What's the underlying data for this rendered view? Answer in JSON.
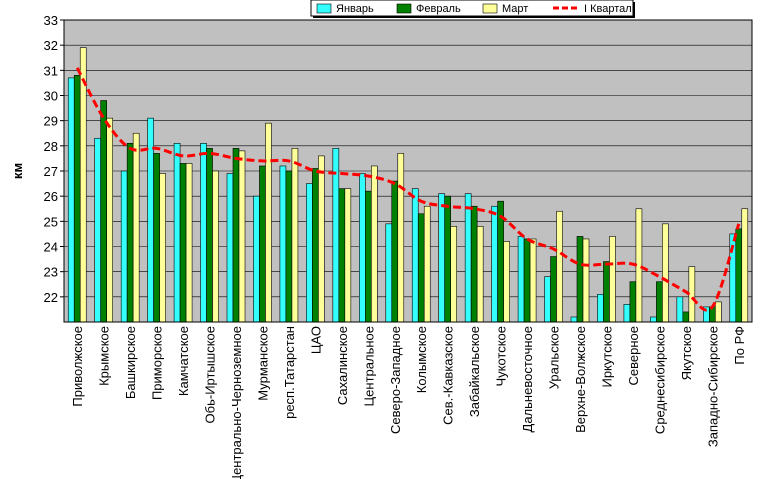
{
  "chart_data": {
    "type": "bar",
    "ylabel": "км",
    "ylim": [
      21,
      33
    ],
    "yticks": [
      22,
      23,
      24,
      25,
      26,
      27,
      28,
      29,
      30,
      31,
      32,
      33
    ],
    "grid": true,
    "legend_position": "top-right",
    "categories": [
      "Приволжское",
      "Крымское",
      "Башкирское",
      "Приморское",
      "Камчатское",
      "Обь-Иртышское",
      "Центрально-Черноземное",
      "Мурманское",
      "респ.Татарстан",
      "ЦАО",
      "Сахалинское",
      "Центральное",
      "Северо-Западное",
      "Колымское",
      "Сев.-Кавказское",
      "Забайкальское",
      "Чукотское",
      "Дальневосточное",
      "Уральское",
      "Верхне-Волжское",
      "Иркутское",
      "Северное",
      "Среднесибирское",
      "Якутское",
      "Западно-Сибирское",
      "По РФ"
    ],
    "series": [
      {
        "name": "Январь",
        "type": "bar",
        "color": "#33ffff",
        "values": [
          30.7,
          28.3,
          27.0,
          29.1,
          28.1,
          28.1,
          26.9,
          26.0,
          27.2,
          26.5,
          27.9,
          26.9,
          24.9,
          26.3,
          26.1,
          26.1,
          25.6,
          24.4,
          22.8,
          21.2,
          22.1,
          21.7,
          21.2,
          22.0,
          21.6,
          24.5
        ]
      },
      {
        "name": "Февраль",
        "type": "bar",
        "color": "#008000",
        "values": [
          30.8,
          29.8,
          28.1,
          27.7,
          27.3,
          27.9,
          27.9,
          27.2,
          27.0,
          27.1,
          26.3,
          26.2,
          26.6,
          25.3,
          26.0,
          25.6,
          25.8,
          24.3,
          23.6,
          24.4,
          23.4,
          22.6,
          22.6,
          21.4,
          21.6,
          24.7
        ]
      },
      {
        "name": "Март",
        "type": "bar",
        "color": "#ffff99",
        "values": [
          31.9,
          29.1,
          28.5,
          26.9,
          27.3,
          27.0,
          27.8,
          28.9,
          27.9,
          27.6,
          26.3,
          27.2,
          27.7,
          25.6,
          24.8,
          24.8,
          24.2,
          24.3,
          25.4,
          24.3,
          24.4,
          25.5,
          24.9,
          23.2,
          21.8,
          25.5
        ]
      },
      {
        "name": "I Квартал",
        "type": "line",
        "color": "#ff0000",
        "values": [
          31.1,
          29.1,
          27.9,
          27.9,
          27.6,
          27.7,
          27.5,
          27.4,
          27.4,
          27.0,
          26.9,
          26.8,
          26.5,
          25.8,
          25.6,
          25.5,
          25.2,
          24.3,
          23.9,
          23.3,
          23.3,
          23.3,
          22.8,
          22.2,
          21.6,
          24.9
        ]
      }
    ]
  }
}
